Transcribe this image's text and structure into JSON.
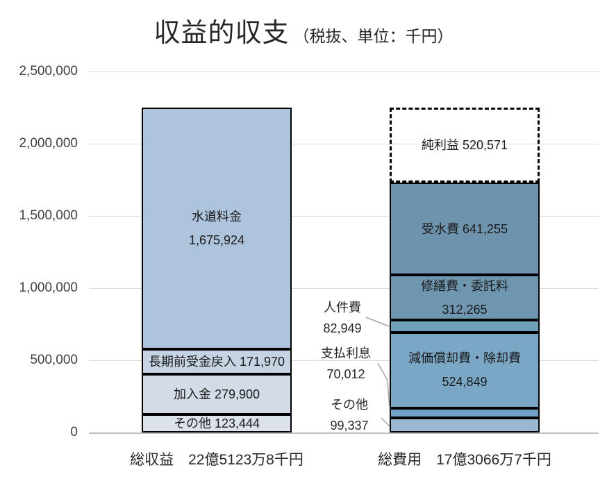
{
  "title": {
    "main": "収益的収支",
    "sub": "（税抜、単位：千円）"
  },
  "y_axis": {
    "tick_labels": [
      "0",
      "500,000",
      "1,000,000",
      "1,500,000",
      "2,000,000",
      "2,500,000"
    ]
  },
  "category_labels": {
    "left": "総収益　22億5123万8千円",
    "right": "総費用　17億3066万7千円"
  },
  "annotations": [
    {
      "name": "jinkenhi",
      "lines": [
        "人件費",
        "82,949"
      ]
    },
    {
      "name": "shiharairisoku",
      "lines": [
        "支払利息",
        "70,012"
      ]
    },
    {
      "name": "sonota",
      "lines": [
        "その他",
        "99,337"
      ]
    }
  ],
  "colors": {
    "gridline": "#d9d9d9",
    "axis_line": "#bfbfbf",
    "leader_line": "#a6a6a6",
    "segment_border": "#000000"
  },
  "chart_data": {
    "type": "bar",
    "stacked": true,
    "title": "収益的収支（税抜、単位：千円）",
    "unit": "千円",
    "tax_note": "税抜",
    "ylim": [
      0,
      2500000
    ],
    "yticks": [
      0,
      500000,
      1000000,
      1500000,
      2000000,
      2500000
    ],
    "categories": [
      "総収益　22億5123万8千円",
      "総費用　17億3066万7千円"
    ],
    "bars": [
      {
        "category": "総収益",
        "total": 2251238,
        "segments": [
          {
            "name": "sonota-left",
            "label": "その他",
            "value": 123444,
            "lines": [
              "その他 123,444"
            ],
            "color": "#dbe2eb",
            "label_position": "inside"
          },
          {
            "name": "kanyukin",
            "label": "加入金",
            "value": 279900,
            "lines": [
              "加入金 279,900"
            ],
            "color": "#d2dbe6",
            "label_position": "inside"
          },
          {
            "name": "chokimae-ukekin-modoshiire",
            "label": "長期前受金戻入",
            "value": 171970,
            "lines": [
              "長期前受金戻入 171,970"
            ],
            "color": "#c6d3e3",
            "label_position": "inside"
          },
          {
            "name": "suido-ryokin",
            "label": "水道料金",
            "value": 1675924,
            "lines": [
              "水道料金",
              "1,675,924"
            ],
            "color": "#aec3dc",
            "label_position": "inside"
          }
        ]
      },
      {
        "category": "総費用",
        "total": 1730667,
        "segments": [
          {
            "name": "sonota-right",
            "label": "その他",
            "value": 99337,
            "lines": [],
            "color": "#9bb8d3",
            "label_position": "outside"
          },
          {
            "name": "shiharai-risoku",
            "label": "支払利息",
            "value": 70012,
            "lines": [],
            "color": "#72a2c6",
            "label_position": "outside"
          },
          {
            "name": "genka-shokyakuhi",
            "label": "減価償却費・除却費",
            "value": 524849,
            "lines": [
              "減価償却費・除却費",
              "524,849"
            ],
            "color": "#7aa7c6",
            "label_position": "inside"
          },
          {
            "name": "jinkenhi",
            "label": "人件費",
            "value": 82949,
            "lines": [],
            "color": "#6fa0ba",
            "label_position": "outside"
          },
          {
            "name": "shuzenhi-itakuryo",
            "label": "修繕費・委託料",
            "value": 312265,
            "lines": [
              "修繕費・委託料",
              "312,265"
            ],
            "color": "#6e97af",
            "label_position": "inside"
          },
          {
            "name": "jusui-hi",
            "label": "受水費",
            "value": 641255,
            "lines": [
              "受水費 641,255"
            ],
            "color": "#6e93ad",
            "label_position": "inside"
          },
          {
            "name": "junrieki",
            "label": "純利益",
            "value": 520571,
            "lines": [
              "純利益 520,571"
            ],
            "color": "none",
            "dashed": true,
            "label_position": "inside"
          }
        ]
      }
    ]
  }
}
